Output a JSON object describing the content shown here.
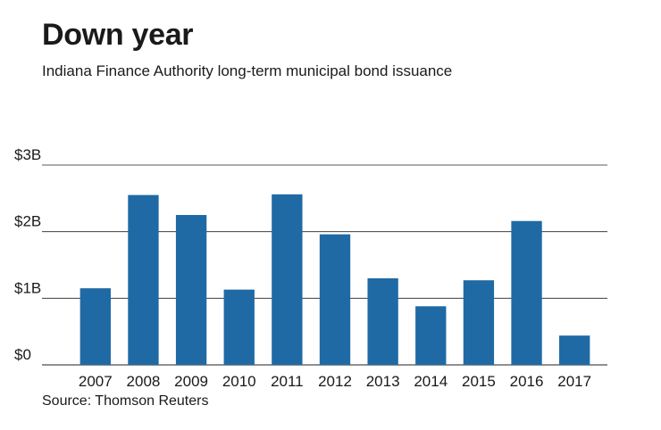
{
  "title": "Down year",
  "subtitle": "Indiana Finance Authority long-term municipal bond issuance",
  "source": "Source: Thomson Reuters",
  "colors": {
    "bar": "#1f6aa5",
    "grid": "#222222"
  },
  "chart_data": {
    "type": "bar",
    "title": "Down year",
    "subtitle": "Indiana Finance Authority long-term municipal bond issuance",
    "xlabel": "",
    "ylabel": "",
    "categories": [
      "2007",
      "2008",
      "2009",
      "2010",
      "2011",
      "2012",
      "2013",
      "2014",
      "2015",
      "2016",
      "2017"
    ],
    "values": [
      1.15,
      2.55,
      2.25,
      1.13,
      2.56,
      1.96,
      1.3,
      0.88,
      1.27,
      2.16,
      0.44
    ],
    "unit": "billions of dollars",
    "ylim": [
      0,
      3
    ],
    "yticks": [
      0,
      1,
      2,
      3
    ],
    "ytick_labels": [
      "$0",
      "$1B",
      "$2B",
      "$3B"
    ],
    "grid": true,
    "legend": "none"
  }
}
